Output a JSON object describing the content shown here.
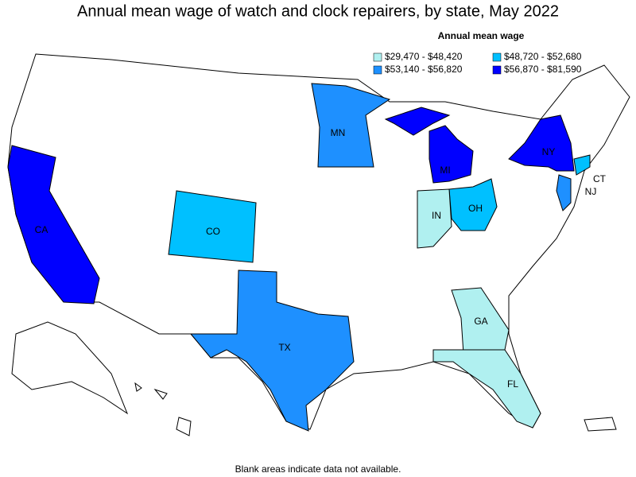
{
  "title": "Annual mean wage of watch and clock repairers, by state, May 2022",
  "legend": {
    "title": "Annual mean wage",
    "items": [
      {
        "label": "$29,470 - $48,420",
        "color": "#b0f0f0"
      },
      {
        "label": "$48,720 - $52,680",
        "color": "#00c0ff"
      },
      {
        "label": "$53,140 - $56,820",
        "color": "#1e90ff"
      },
      {
        "label": "$56,870 - $81,590",
        "color": "#0000ff"
      }
    ]
  },
  "states": [
    {
      "label": "CA",
      "color": "#0000ff"
    },
    {
      "label": "CO",
      "color": "#00c0ff"
    },
    {
      "label": "TX",
      "color": "#1e90ff"
    },
    {
      "label": "MN",
      "color": "#1e90ff"
    },
    {
      "label": "MI",
      "color": "#0000ff"
    },
    {
      "label": "NY",
      "color": "#0000ff"
    },
    {
      "label": "CT",
      "color": "#00c0ff"
    },
    {
      "label": "NJ",
      "color": "#1e90ff"
    },
    {
      "label": "OH",
      "color": "#00c0ff"
    },
    {
      "label": "IN",
      "color": "#b0f0f0"
    },
    {
      "label": "GA",
      "color": "#b0f0f0"
    },
    {
      "label": "FL",
      "color": "#b0f0f0"
    }
  ],
  "footnote": "Blank areas indicate data not available."
}
